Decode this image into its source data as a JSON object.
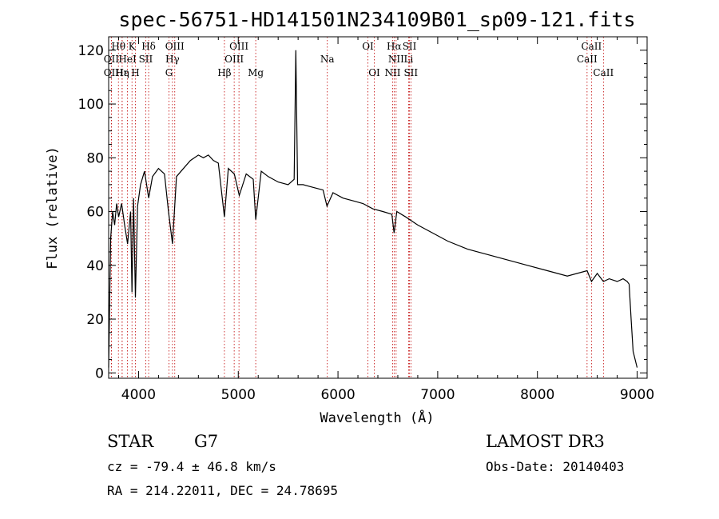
{
  "chart_data": {
    "type": "line",
    "title": "spec-56751-HD141501N234109B01_sp09-121.fits",
    "xlabel": "Wavelength (Å)",
    "ylabel": "Flux (relative)",
    "xlim": [
      3700,
      9100
    ],
    "ylim": [
      -2,
      125
    ],
    "xticks": [
      4000,
      5000,
      6000,
      7000,
      8000,
      9000
    ],
    "yticks": [
      0,
      20,
      40,
      60,
      80,
      100,
      120
    ],
    "series": [
      {
        "name": "spectrum",
        "x": [
          3700,
          3720,
          3740,
          3760,
          3780,
          3800,
          3830,
          3860,
          3890,
          3920,
          3934,
          3950,
          3968,
          3990,
          4020,
          4060,
          4101,
          4140,
          4200,
          4260,
          4300,
          4340,
          4380,
          4450,
          4520,
          4600,
          4650,
          4700,
          4750,
          4800,
          4861,
          4900,
          4960,
          5010,
          5080,
          5150,
          5175,
          5230,
          5300,
          5400,
          5500,
          5560,
          5577,
          5595,
          5650,
          5750,
          5850,
          5890,
          5950,
          6050,
          6150,
          6250,
          6350,
          6450,
          6540,
          6563,
          6590,
          6680,
          6800,
          6950,
          7100,
          7300,
          7500,
          7700,
          7900,
          8100,
          8300,
          8498,
          8542,
          8600,
          8662,
          8720,
          8800,
          8860,
          8900,
          8920,
          8940,
          8960,
          9000
        ],
        "values": [
          2,
          50,
          60,
          55,
          63,
          58,
          63,
          55,
          48,
          60,
          30,
          65,
          28,
          62,
          70,
          75,
          65,
          73,
          76,
          74,
          60,
          48,
          73,
          76,
          79,
          81,
          80,
          81,
          79,
          78,
          58,
          76,
          74,
          66,
          74,
          72,
          57,
          75,
          73,
          71,
          70,
          72,
          120,
          70,
          70,
          69,
          68,
          62,
          67,
          65,
          64,
          63,
          61,
          60,
          59,
          52,
          60,
          58,
          55,
          52,
          49,
          46,
          44,
          42,
          40,
          38,
          36,
          38,
          34,
          37,
          34,
          35,
          34,
          35,
          34,
          33,
          20,
          8,
          2
        ]
      }
    ],
    "lines": [
      {
        "label": "Hθ",
        "x": 3798,
        "row": 0
      },
      {
        "label": "K",
        "x": 3934,
        "row": 0
      },
      {
        "label": "Hδ",
        "x": 4101,
        "row": 0
      },
      {
        "label": "OIII",
        "x": 4363,
        "row": 0
      },
      {
        "label": "OIII",
        "x": 5007,
        "row": 0
      },
      {
        "label": "OI",
        "x": 6300,
        "row": 0
      },
      {
        "label": "Hα",
        "x": 6563,
        "row": 0
      },
      {
        "label": "SII",
        "x": 6717,
        "row": 0
      },
      {
        "label": "CaII",
        "x": 8542,
        "row": 0
      },
      {
        "label": "OII",
        "x": 3727,
        "row": 1
      },
      {
        "label": "HeI",
        "x": 3889,
        "row": 1
      },
      {
        "label": "SII",
        "x": 4072,
        "row": 1
      },
      {
        "label": "Hγ",
        "x": 4340,
        "row": 1
      },
      {
        "label": "OIII",
        "x": 4959,
        "row": 1
      },
      {
        "label": "Na",
        "x": 5893,
        "row": 1
      },
      {
        "label": "NII",
        "x": 6583,
        "row": 1
      },
      {
        "label": "Li",
        "x": 6708,
        "row": 1
      },
      {
        "label": "CaII",
        "x": 8498,
        "row": 1
      },
      {
        "label": "OII",
        "x": 3727,
        "row": 2
      },
      {
        "label": "Hε",
        "x": 3835,
        "row": 2
      },
      {
        "label": "Hη",
        "x": 3835,
        "row": 2
      },
      {
        "label": "H",
        "x": 3968,
        "row": 2
      },
      {
        "label": "G",
        "x": 4305,
        "row": 2
      },
      {
        "label": "Hβ",
        "x": 4861,
        "row": 2
      },
      {
        "label": "Mg",
        "x": 5175,
        "row": 2
      },
      {
        "label": "OI",
        "x": 6364,
        "row": 2
      },
      {
        "label": "NII",
        "x": 6548,
        "row": 2
      },
      {
        "label": "SII",
        "x": 6731,
        "row": 2
      },
      {
        "label": "CaII",
        "x": 8662,
        "row": 2
      }
    ]
  },
  "info": {
    "class": "STAR",
    "subclass": "G7",
    "survey": "LAMOST DR3",
    "cz": "cz = -79.4 ± 46.8 km/s",
    "obs_date": "Obs-Date: 20140403",
    "coords": "RA = 214.22011, DEC =  24.78695"
  }
}
